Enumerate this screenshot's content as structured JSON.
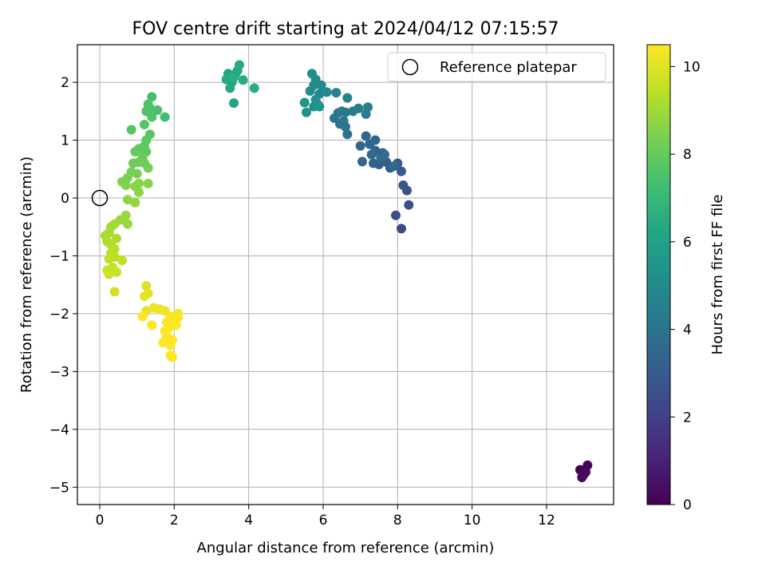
{
  "chart_data": {
    "type": "scatter",
    "title": "FOV centre drift starting at 2024/04/12 07:15:57",
    "xlabel": "Angular distance from reference (arcmin)",
    "ylabel": "Rotation from reference (arcmin)",
    "xlim": [
      -0.6,
      13.8
    ],
    "ylim": [
      -5.3,
      2.65
    ],
    "x_ticks": [
      0,
      2,
      4,
      6,
      8,
      10,
      12
    ],
    "y_ticks": [
      -5,
      -4,
      -3,
      -2,
      -1,
      0,
      1,
      2
    ],
    "x_tick_labels": [
      "0",
      "2",
      "4",
      "6",
      "8",
      "10",
      "12"
    ],
    "y_tick_labels": [
      "−5",
      "−4",
      "−3",
      "−2",
      "−1",
      "0",
      "1",
      "2"
    ],
    "grid": true,
    "colormap": "viridis",
    "colorbar": {
      "label": "Hours from first FF file",
      "range": [
        0,
        10.5
      ],
      "ticks": [
        0,
        2,
        4,
        6,
        8,
        10
      ],
      "tick_labels": [
        "0",
        "2",
        "4",
        "6",
        "8",
        "10"
      ]
    },
    "legend": {
      "placement": "top-right",
      "entries": [
        {
          "label": "Reference platepar",
          "marker": "open-circle"
        }
      ]
    },
    "reference_point": {
      "x": 0,
      "y": 0
    },
    "points": [
      {
        "x": 12.9,
        "y": -4.7,
        "t": 0.0
      },
      {
        "x": 13.1,
        "y": -4.62,
        "t": 0.1
      },
      {
        "x": 12.95,
        "y": -4.83,
        "t": 0.15
      },
      {
        "x": 13.05,
        "y": -4.74,
        "t": 0.2
      },
      {
        "x": 13.0,
        "y": -4.78,
        "t": 0.25
      },
      {
        "x": 8.1,
        "y": -0.53,
        "t": 2.3
      },
      {
        "x": 7.95,
        "y": -0.3,
        "t": 2.5
      },
      {
        "x": 8.3,
        "y": -0.12,
        "t": 2.6
      },
      {
        "x": 8.25,
        "y": 0.13,
        "t": 2.7
      },
      {
        "x": 8.15,
        "y": 0.22,
        "t": 2.8
      },
      {
        "x": 8.1,
        "y": 0.46,
        "t": 2.9
      },
      {
        "x": 8.0,
        "y": 0.6,
        "t": 3.0
      },
      {
        "x": 7.8,
        "y": 0.52,
        "t": 3.05
      },
      {
        "x": 7.7,
        "y": 0.62,
        "t": 3.1
      },
      {
        "x": 7.6,
        "y": 0.78,
        "t": 3.15
      },
      {
        "x": 7.5,
        "y": 0.58,
        "t": 3.2
      },
      {
        "x": 7.4,
        "y": 0.82,
        "t": 3.25
      },
      {
        "x": 7.35,
        "y": 0.6,
        "t": 3.3
      },
      {
        "x": 7.25,
        "y": 0.93,
        "t": 3.35
      },
      {
        "x": 7.15,
        "y": 1.07,
        "t": 3.4
      },
      {
        "x": 7.05,
        "y": 0.63,
        "t": 3.45
      },
      {
        "x": 7.0,
        "y": 0.9,
        "t": 3.5
      },
      {
        "x": 7.4,
        "y": 1.0,
        "t": 3.55
      },
      {
        "x": 7.55,
        "y": 0.7,
        "t": 3.6
      },
      {
        "x": 7.9,
        "y": 0.55,
        "t": 3.65
      },
      {
        "x": 7.65,
        "y": 0.75,
        "t": 3.7
      },
      {
        "x": 7.3,
        "y": 0.75,
        "t": 3.75
      },
      {
        "x": 6.65,
        "y": 1.1,
        "t": 3.9
      },
      {
        "x": 6.6,
        "y": 1.23,
        "t": 4.0
      },
      {
        "x": 6.55,
        "y": 1.33,
        "t": 4.05
      },
      {
        "x": 6.45,
        "y": 1.28,
        "t": 4.1
      },
      {
        "x": 6.3,
        "y": 1.38,
        "t": 4.15
      },
      {
        "x": 6.4,
        "y": 1.47,
        "t": 4.2
      },
      {
        "x": 6.5,
        "y": 1.5,
        "t": 4.25
      },
      {
        "x": 6.6,
        "y": 1.48,
        "t": 4.3
      },
      {
        "x": 6.8,
        "y": 1.5,
        "t": 4.35
      },
      {
        "x": 6.95,
        "y": 1.55,
        "t": 4.4
      },
      {
        "x": 7.15,
        "y": 1.45,
        "t": 4.45
      },
      {
        "x": 7.2,
        "y": 1.57,
        "t": 4.5
      },
      {
        "x": 6.65,
        "y": 1.73,
        "t": 4.55
      },
      {
        "x": 6.35,
        "y": 1.82,
        "t": 4.6
      },
      {
        "x": 5.9,
        "y": 1.8,
        "t": 4.8
      },
      {
        "x": 6.1,
        "y": 1.83,
        "t": 4.85
      },
      {
        "x": 5.75,
        "y": 1.95,
        "t": 4.9
      },
      {
        "x": 5.95,
        "y": 1.95,
        "t": 4.95
      },
      {
        "x": 5.8,
        "y": 2.05,
        "t": 5.0
      },
      {
        "x": 5.7,
        "y": 2.15,
        "t": 5.05
      },
      {
        "x": 5.65,
        "y": 1.85,
        "t": 5.1
      },
      {
        "x": 5.8,
        "y": 1.7,
        "t": 5.15
      },
      {
        "x": 5.75,
        "y": 1.58,
        "t": 5.2
      },
      {
        "x": 5.9,
        "y": 1.58,
        "t": 5.25
      },
      {
        "x": 5.5,
        "y": 1.65,
        "t": 5.3
      },
      {
        "x": 5.55,
        "y": 1.48,
        "t": 5.35
      },
      {
        "x": 5.85,
        "y": 1.62,
        "t": 5.4
      },
      {
        "x": 3.6,
        "y": 1.64,
        "t": 6.1
      },
      {
        "x": 3.45,
        "y": 2.15,
        "t": 6.15
      },
      {
        "x": 3.55,
        "y": 2.0,
        "t": 6.2
      },
      {
        "x": 3.5,
        "y": 1.9,
        "t": 6.25
      },
      {
        "x": 3.65,
        "y": 2.15,
        "t": 6.3
      },
      {
        "x": 3.7,
        "y": 2.2,
        "t": 6.35
      },
      {
        "x": 3.75,
        "y": 2.3,
        "t": 6.4
      },
      {
        "x": 3.4,
        "y": 2.05,
        "t": 6.45
      },
      {
        "x": 3.85,
        "y": 2.04,
        "t": 6.5
      },
      {
        "x": 4.15,
        "y": 1.9,
        "t": 6.55
      },
      {
        "x": 3.6,
        "y": 2.08,
        "t": 6.6
      },
      {
        "x": 1.75,
        "y": 1.4,
        "t": 7.3
      },
      {
        "x": 1.4,
        "y": 1.75,
        "t": 7.35
      },
      {
        "x": 1.55,
        "y": 1.52,
        "t": 7.4
      },
      {
        "x": 1.35,
        "y": 1.55,
        "t": 7.45
      },
      {
        "x": 1.3,
        "y": 1.62,
        "t": 7.5
      },
      {
        "x": 1.25,
        "y": 1.5,
        "t": 7.55
      },
      {
        "x": 1.4,
        "y": 1.4,
        "t": 7.6
      },
      {
        "x": 1.2,
        "y": 1.27,
        "t": 7.65
      },
      {
        "x": 0.85,
        "y": 1.18,
        "t": 7.7
      },
      {
        "x": 1.35,
        "y": 1.1,
        "t": 7.75
      },
      {
        "x": 1.25,
        "y": 1.0,
        "t": 7.8
      },
      {
        "x": 1.2,
        "y": 0.9,
        "t": 7.85
      },
      {
        "x": 1.25,
        "y": 0.8,
        "t": 7.9
      },
      {
        "x": 1.05,
        "y": 0.85,
        "t": 7.95
      },
      {
        "x": 0.95,
        "y": 0.8,
        "t": 8.0
      },
      {
        "x": 1.15,
        "y": 0.7,
        "t": 8.05
      },
      {
        "x": 0.9,
        "y": 0.6,
        "t": 8.1
      },
      {
        "x": 1.05,
        "y": 0.62,
        "t": 8.15
      },
      {
        "x": 1.2,
        "y": 0.6,
        "t": 8.2
      },
      {
        "x": 1.3,
        "y": 0.52,
        "t": 8.25
      },
      {
        "x": 0.85,
        "y": 0.45,
        "t": 8.3
      },
      {
        "x": 1.0,
        "y": 0.42,
        "t": 8.35
      },
      {
        "x": 0.75,
        "y": 0.35,
        "t": 8.4
      },
      {
        "x": 0.6,
        "y": 0.28,
        "t": 8.45
      },
      {
        "x": 0.7,
        "y": 0.22,
        "t": 8.5
      },
      {
        "x": 1.3,
        "y": 0.25,
        "t": 8.55
      },
      {
        "x": 1.05,
        "y": 0.25,
        "t": 8.6
      },
      {
        "x": 0.95,
        "y": 0.2,
        "t": 8.65
      },
      {
        "x": 1.05,
        "y": 0.1,
        "t": 8.7
      },
      {
        "x": 0.75,
        "y": -0.03,
        "t": 8.75
      },
      {
        "x": 0.95,
        "y": -0.08,
        "t": 8.8
      },
      {
        "x": 0.7,
        "y": -0.3,
        "t": 8.85
      },
      {
        "x": 0.55,
        "y": -0.38,
        "t": 8.9
      },
      {
        "x": 0.75,
        "y": -0.45,
        "t": 8.95
      },
      {
        "x": 0.4,
        "y": -0.45,
        "t": 9.0
      },
      {
        "x": 0.3,
        "y": -0.5,
        "t": 9.05
      },
      {
        "x": 0.25,
        "y": -0.6,
        "t": 9.1
      },
      {
        "x": 0.15,
        "y": -0.65,
        "t": 9.15
      },
      {
        "x": 0.2,
        "y": -0.75,
        "t": 9.2
      },
      {
        "x": 0.45,
        "y": -0.7,
        "t": 9.25
      },
      {
        "x": 0.3,
        "y": -0.8,
        "t": 9.3
      },
      {
        "x": 0.4,
        "y": -0.88,
        "t": 9.35
      },
      {
        "x": 0.3,
        "y": -0.95,
        "t": 9.4
      },
      {
        "x": 0.4,
        "y": -1.02,
        "t": 9.45
      },
      {
        "x": 0.25,
        "y": -1.05,
        "t": 9.5
      },
      {
        "x": 0.6,
        "y": -1.08,
        "t": 9.55
      },
      {
        "x": 0.35,
        "y": -1.2,
        "t": 9.6
      },
      {
        "x": 0.2,
        "y": -1.25,
        "t": 9.65
      },
      {
        "x": 0.45,
        "y": -1.28,
        "t": 9.7
      },
      {
        "x": 0.25,
        "y": -1.32,
        "t": 9.75
      },
      {
        "x": 0.4,
        "y": -1.62,
        "t": 9.8
      },
      {
        "x": 1.25,
        "y": -1.52,
        "t": 10.0
      },
      {
        "x": 1.3,
        "y": -1.65,
        "t": 10.05
      },
      {
        "x": 1.2,
        "y": -1.7,
        "t": 10.1
      },
      {
        "x": 1.25,
        "y": -1.95,
        "t": 10.15
      },
      {
        "x": 1.45,
        "y": -1.9,
        "t": 10.2
      },
      {
        "x": 1.6,
        "y": -1.92,
        "t": 10.25
      },
      {
        "x": 1.75,
        "y": -1.95,
        "t": 10.3
      },
      {
        "x": 2.1,
        "y": -2.0,
        "t": 10.35
      },
      {
        "x": 1.9,
        "y": -2.05,
        "t": 10.4
      },
      {
        "x": 2.0,
        "y": -2.1,
        "t": 10.4
      },
      {
        "x": 1.8,
        "y": -2.15,
        "t": 10.45
      },
      {
        "x": 1.15,
        "y": -2.05,
        "t": 10.45
      },
      {
        "x": 1.4,
        "y": -2.2,
        "t": 10.5
      },
      {
        "x": 1.85,
        "y": -2.25,
        "t": 10.5
      },
      {
        "x": 2.05,
        "y": -2.2,
        "t": 10.5
      },
      {
        "x": 1.8,
        "y": -2.4,
        "t": 10.5
      },
      {
        "x": 1.95,
        "y": -2.45,
        "t": 10.5
      },
      {
        "x": 1.7,
        "y": -2.5,
        "t": 10.5
      },
      {
        "x": 1.9,
        "y": -2.55,
        "t": 10.5
      },
      {
        "x": 1.9,
        "y": -2.72,
        "t": 10.5
      },
      {
        "x": 1.95,
        "y": -2.75,
        "t": 10.5
      },
      {
        "x": 2.1,
        "y": -2.07,
        "t": 10.5
      },
      {
        "x": 1.75,
        "y": -2.3,
        "t": 10.5
      }
    ]
  }
}
